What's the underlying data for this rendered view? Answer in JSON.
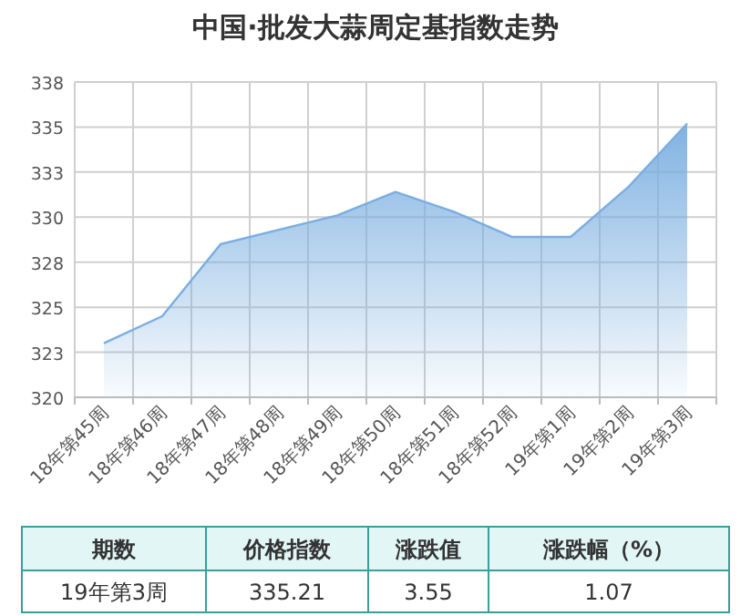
{
  "chart_data": {
    "type": "area",
    "title": "中国·批发大蒜周定基指数走势",
    "categories": [
      "18年第45周",
      "18年第46周",
      "18年第47周",
      "18年第48周",
      "18年第49周",
      "18年第50周",
      "18年第51周",
      "18年第52周",
      "19年第1周",
      "19年第2周",
      "19年第3周"
    ],
    "series": [
      {
        "color": "#7aaee0",
        "values": [
          323.0,
          324.5,
          328.5,
          329.3,
          330.1,
          331.4,
          330.3,
          328.9,
          328.9,
          331.7,
          335.2
        ]
      }
    ],
    "ylim": [
      320,
      337.5
    ],
    "yticks": [
      320,
      {
        "value": 322.5,
        "label": "323"
      },
      325,
      {
        "value": 327.5,
        "label": "328"
      },
      330,
      {
        "value": 332.5,
        "label": "333"
      },
      335,
      {
        "value": 337.5,
        "label": "338"
      }
    ],
    "grid": true,
    "annotations": [
      "期数",
      "价格指数",
      "涨跌值",
      "涨跌幅（%）",
      "19年第3周",
      "335.21",
      "3.55",
      "1.07"
    ]
  }
}
